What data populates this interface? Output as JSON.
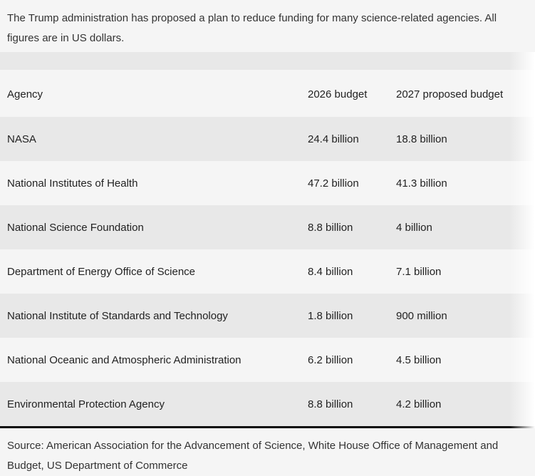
{
  "caption": "The Trump administration has proposed a plan to reduce funding for many science-related agencies. All figures are in US dollars.",
  "source": "Source: American Association for the Advancement of Science, White House Office of Management and Budget, US Department of Commerce",
  "colors": {
    "background": "#f5f5f5",
    "row_stripe": "#e8e8e8",
    "divider": "#0a0a0a",
    "text": "#222222"
  },
  "chart_data": {
    "type": "table",
    "title": "",
    "columns": [
      "Agency",
      "2026 budget",
      "2027 proposed budget"
    ],
    "rows": [
      [
        "NASA",
        "24.4 billion",
        "18.8 billion"
      ],
      [
        "National Institutes of Health",
        "47.2 billion",
        "41.3 billion"
      ],
      [
        "National Science Foundation",
        "8.8 billion",
        "4 billion"
      ],
      [
        "Department of Energy Office of Science",
        "8.4 billion",
        "7.1 billion"
      ],
      [
        "National Institute of Standards and Technology",
        "1.8 billion",
        "900 million"
      ],
      [
        "National Oceanic and Atmospheric Administration",
        "6.2 billion",
        "4.5 billion"
      ],
      [
        "Environmental Protection Agency",
        "8.8 billion",
        "4.2 billion"
      ]
    ],
    "values_numeric_billions_usd": {
      "budget_2026": [
        24.4,
        47.2,
        8.8,
        8.4,
        1.8,
        6.2,
        8.8
      ],
      "budget_2027_proposed": [
        18.8,
        41.3,
        4.0,
        7.1,
        0.9,
        4.5,
        4.2
      ]
    },
    "layout_hints": {
      "striped_rows": true,
      "stripe_starts_on_first_data_row": true,
      "right_edge_fade": true,
      "bottom_rule": true
    }
  }
}
